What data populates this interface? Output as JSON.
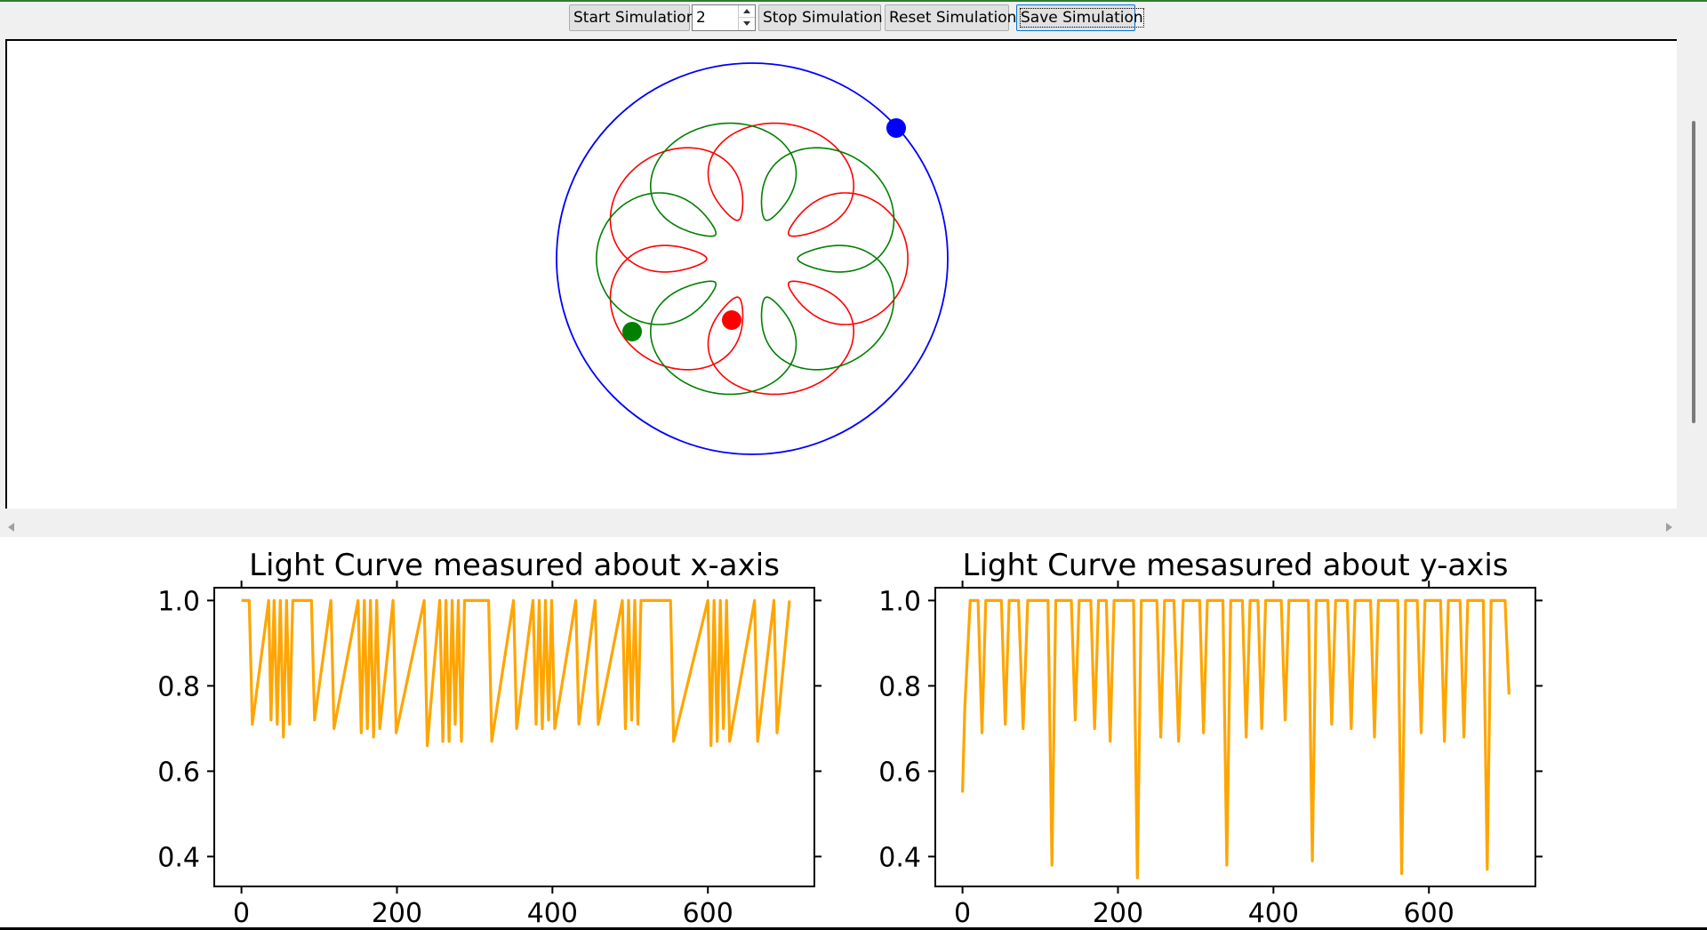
{
  "toolbar": {
    "start_label": "Start Simulation",
    "spin_value": "2",
    "stop_label": "Stop Simulation",
    "reset_label": "Reset Simulation",
    "save_label": "Save Simulation"
  },
  "simulation": {
    "orbit_color": "#0000ff",
    "red_color": "#ff0000",
    "green_color": "#008000"
  },
  "chart_data": [
    {
      "type": "line",
      "title": "Light Curve measured about x-axis",
      "xlabel": "",
      "ylabel": "",
      "color": "#ffa500",
      "xlim": [
        -35,
        737
      ],
      "ylim": [
        0.33,
        1.03
      ],
      "xticks": [
        0,
        200,
        400,
        600
      ],
      "yticks": [
        1.0,
        0.8,
        0.6,
        0.4
      ],
      "x": [
        0,
        5,
        10,
        14,
        35,
        38,
        42,
        46,
        50,
        54,
        58,
        62,
        66,
        70,
        90,
        94,
        115,
        119,
        150,
        154,
        158,
        162,
        166,
        170,
        174,
        178,
        195,
        199,
        235,
        239,
        255,
        259,
        263,
        267,
        271,
        275,
        279,
        283,
        287,
        291,
        318,
        322,
        350,
        354,
        375,
        379,
        383,
        387,
        391,
        395,
        399,
        403,
        430,
        434,
        455,
        459,
        490,
        494,
        498,
        502,
        506,
        510,
        514,
        518,
        552,
        556,
        600,
        604,
        608,
        612,
        616,
        620,
        624,
        628,
        660,
        664,
        685,
        689,
        705
      ],
      "y": [
        1.0,
        1.0,
        1.0,
        0.71,
        1.0,
        0.72,
        1.0,
        0.71,
        1.0,
        0.68,
        1.0,
        0.71,
        1.0,
        1.0,
        1.0,
        0.72,
        1.0,
        0.7,
        1.0,
        0.69,
        1.0,
        0.7,
        1.0,
        0.68,
        1.0,
        0.7,
        1.0,
        0.69,
        1.0,
        0.66,
        1.0,
        0.67,
        1.0,
        0.67,
        1.0,
        0.71,
        1.0,
        0.67,
        1.0,
        1.0,
        1.0,
        0.67,
        1.0,
        0.7,
        1.0,
        0.71,
        1.0,
        0.7,
        1.0,
        0.72,
        1.0,
        0.7,
        1.0,
        0.71,
        1.0,
        0.71,
        1.0,
        0.7,
        1.0,
        0.72,
        1.0,
        0.71,
        1.0,
        1.0,
        1.0,
        0.67,
        1.0,
        0.66,
        1.0,
        0.67,
        1.0,
        0.7,
        1.0,
        0.67,
        1.0,
        0.67,
        1.0,
        0.69,
        1.0
      ]
    },
    {
      "type": "line",
      "title": "Light Curve mesasured about y-axis",
      "xlabel": "",
      "ylabel": "",
      "color": "#ffa500",
      "xlim": [
        -35,
        737
      ],
      "ylim": [
        0.33,
        1.03
      ],
      "xticks": [
        0,
        200,
        400,
        600
      ],
      "yticks": [
        1.0,
        0.8,
        0.6,
        0.4
      ],
      "x": [
        0,
        3,
        10,
        20,
        25,
        30,
        50,
        55,
        60,
        72,
        78,
        84,
        110,
        115,
        120,
        140,
        145,
        150,
        165,
        170,
        175,
        185,
        190,
        195,
        220,
        225,
        230,
        250,
        255,
        260,
        272,
        278,
        284,
        305,
        310,
        315,
        335,
        340,
        345,
        360,
        365,
        370,
        380,
        385,
        390,
        410,
        415,
        420,
        445,
        450,
        455,
        470,
        475,
        480,
        495,
        500,
        505,
        525,
        530,
        535,
        560,
        565,
        570,
        585,
        590,
        595,
        615,
        620,
        625,
        640,
        645,
        650,
        670,
        675,
        680,
        698,
        703
      ],
      "y": [
        0.55,
        0.75,
        1.0,
        1.0,
        0.69,
        1.0,
        1.0,
        0.71,
        1.0,
        1.0,
        0.7,
        1.0,
        1.0,
        0.38,
        1.0,
        1.0,
        0.72,
        1.0,
        1.0,
        0.7,
        1.0,
        1.0,
        0.67,
        1.0,
        1.0,
        0.35,
        1.0,
        1.0,
        0.68,
        1.0,
        1.0,
        0.67,
        1.0,
        1.0,
        0.69,
        1.0,
        1.0,
        0.38,
        1.0,
        1.0,
        0.68,
        1.0,
        1.0,
        0.7,
        1.0,
        1.0,
        0.72,
        1.0,
        1.0,
        0.39,
        1.0,
        1.0,
        0.71,
        1.0,
        1.0,
        0.7,
        1.0,
        1.0,
        0.68,
        1.0,
        1.0,
        0.36,
        1.0,
        1.0,
        0.69,
        1.0,
        1.0,
        0.67,
        1.0,
        1.0,
        0.68,
        1.0,
        1.0,
        0.37,
        1.0,
        1.0,
        0.78
      ]
    }
  ]
}
